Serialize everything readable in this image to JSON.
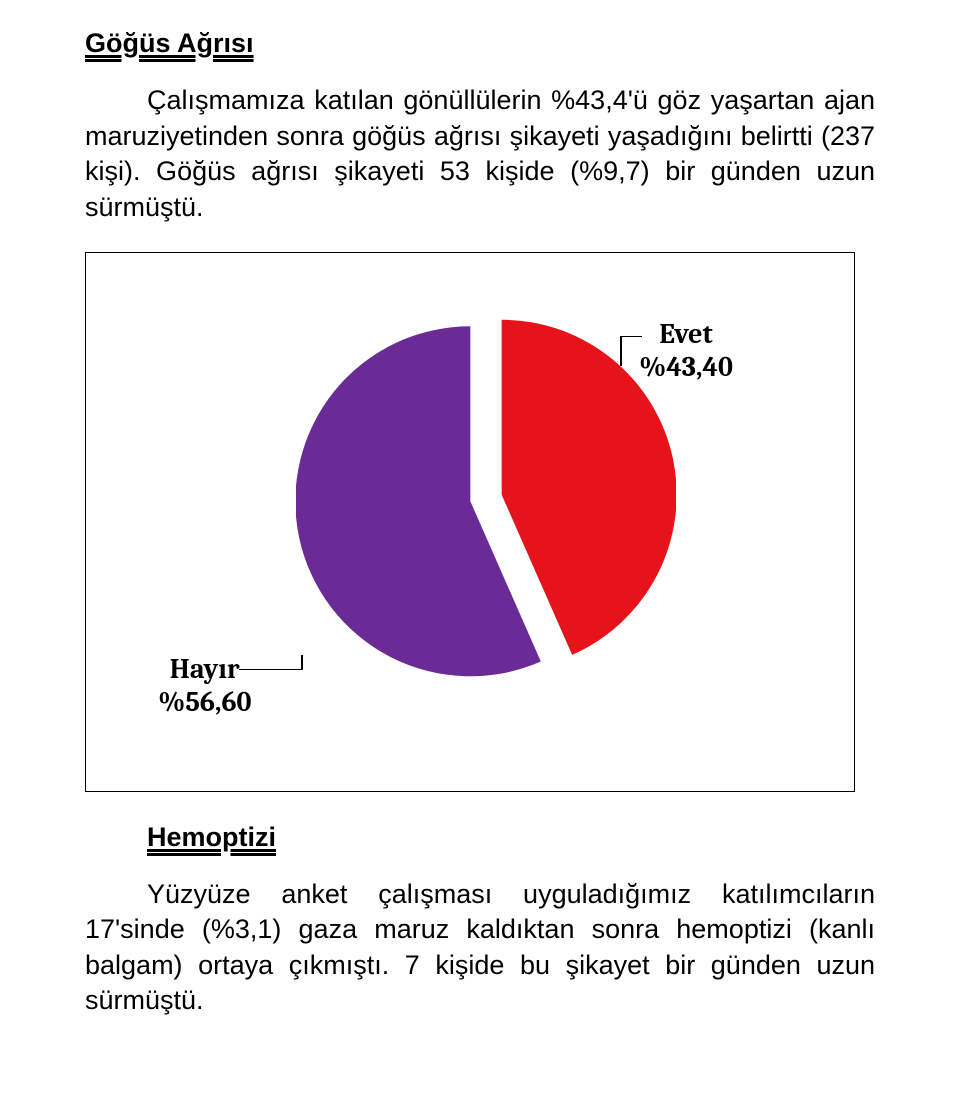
{
  "section1": {
    "title": "Göğüs Ağrısı",
    "paragraph": "Çalışmamıza katılan gönüllülerin %43,4'ü göz yaşartan ajan maruziyetinden sonra göğüs ağrısı şikayeti yaşadığını belirtti (237 kişi). Göğüs ağrısı şikayeti 53 kişide (%9,7) bir günden uzun sürmüştü."
  },
  "chart": {
    "type": "pie",
    "background_color": "#ffffff",
    "border_color": "#000000",
    "label_font": "Cambria, serif",
    "label_fontsize": 28,
    "label_fontweight": "bold",
    "slices": [
      {
        "name": "Evet",
        "label_line1": "Evet",
        "label_line2": "%43,40",
        "value": 43.4,
        "color": "#e6141a"
      },
      {
        "name": "Hayır",
        "label_line1": "Hayır",
        "label_line2": "%56,60",
        "value": 56.6,
        "color": "#6a2b96"
      }
    ],
    "explode_gap": 16,
    "start_angle": -90,
    "radius": 175
  },
  "section2": {
    "title": "Hemoptizi",
    "paragraph": "Yüzyüze anket çalışması uyguladığımız katılımcıların 17'sinde (%3,1) gaza maruz kaldıktan sonra hemoptizi (kanlı balgam) ortaya çıkmıştı. 7 kişide bu şikayet bir günden uzun sürmüştü."
  }
}
